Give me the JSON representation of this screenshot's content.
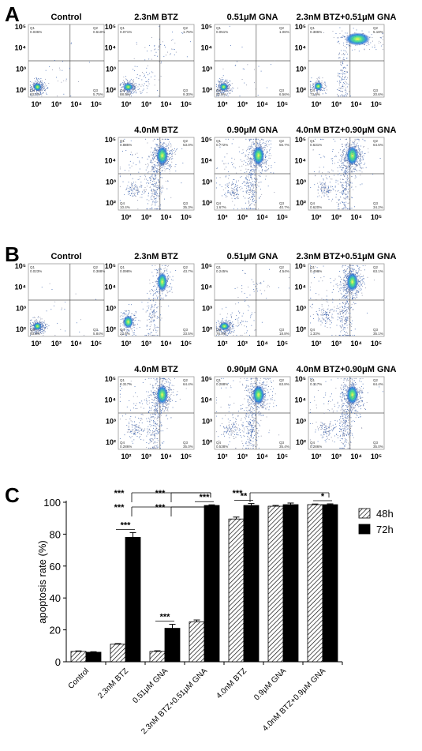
{
  "panels": {
    "A": "A",
    "B": "B",
    "C": "C"
  },
  "flow": {
    "xticks": [
      "10²",
      "10³",
      "10⁴",
      "10⁵"
    ],
    "yticks": [
      "10⁵",
      "10⁴",
      "10³",
      "10²"
    ],
    "quadrant_names": [
      "Q1",
      "Q2",
      "Q4",
      "Q3"
    ],
    "A": [
      {
        "title": "Control",
        "q": [
          "0.036%",
          "0.610%",
          "93.4%",
          "5.75%"
        ],
        "pattern": "control"
      },
      {
        "title": "2.3nM BTZ",
        "q": [
          "0.071%",
          "1.76%",
          "88.9%",
          "9.30%"
        ],
        "pattern": "weak"
      },
      {
        "title": "0.51μM GNA",
        "q": [
          "0.051%",
          "1.06%",
          "92.9%",
          "6.56%"
        ],
        "pattern": "control"
      },
      {
        "title": "2.3nM BTZ+0.51μM GNA",
        "q": [
          "0.386%",
          "5.18%",
          "73.9%",
          "20.6%"
        ],
        "pattern": "mid"
      },
      {
        "title": "4.0nM BTZ",
        "q": [
          "0.885%",
          "53.0%",
          "10.4%",
          "35.3%"
        ],
        "pattern": "strong"
      },
      {
        "title": "0.90μM GNA",
        "q": [
          "0.772%",
          "56.7%",
          "1.67%",
          "40.7%"
        ],
        "pattern": "strong"
      },
      {
        "title": "4.0nM BTZ+0.90μM GNA",
        "q": [
          "0.631%",
          "64.5%",
          "0.620%",
          "34.2%"
        ],
        "pattern": "strong"
      }
    ],
    "B": [
      {
        "title": "Control",
        "q": [
          "0.023%",
          "0.388%",
          "93.8%",
          "5.84%"
        ],
        "pattern": "control"
      },
      {
        "title": "2.3nM BTZ",
        "q": [
          "0.098%",
          "43.7%",
          "22.6%",
          "33.5%"
        ],
        "pattern": "mid2"
      },
      {
        "title": "0.51μM GNA",
        "q": [
          "0.245%",
          "4.54%",
          "76.0%",
          "18.8%"
        ],
        "pattern": "weak"
      },
      {
        "title": "2.3nM BTZ+0.51μM GNA",
        "q": [
          "0.498%",
          "63.1%",
          "1.33%",
          "35.1%"
        ],
        "pattern": "strong"
      },
      {
        "title": "4.0nM BTZ",
        "q": [
          "0.317%",
          "64.4%",
          "0.286%",
          "35.0%"
        ],
        "pattern": "strong"
      },
      {
        "title": "0.90μM GNA",
        "q": [
          "0.288%",
          "63.8%",
          "0.538%",
          "35.4%"
        ],
        "pattern": "strong"
      },
      {
        "title": "4.0nM BTZ+0.90μM GNA",
        "q": [
          "0.317%",
          "64.4%",
          "0.286%",
          "35.0%"
        ],
        "pattern": "strong"
      }
    ]
  },
  "chart_data": {
    "type": "bar",
    "ylabel": "apoptosis rate (%)",
    "ylim": [
      0,
      100
    ],
    "yticks": [
      "0",
      "20",
      "40",
      "60",
      "80",
      "100"
    ],
    "categories": [
      "Control",
      "2.3nM BTZ",
      "0.51μM GNA",
      "2.3nM BTZ+0.51μM GNA",
      "4.0nM BTZ",
      "0.9μM GNA",
      "4.0nM BTZ+0.9μM GNA"
    ],
    "series": [
      {
        "name": "48h",
        "values": [
          6.5,
          11,
          6.5,
          25,
          89.5,
          97.5,
          98.5
        ],
        "errors": [
          0.3,
          0.4,
          0.4,
          1.2,
          1.2,
          0.5,
          0.4
        ],
        "fill": "hatched"
      },
      {
        "name": "72h",
        "values": [
          6,
          78,
          21,
          98,
          98,
          98.5,
          98.5
        ],
        "errors": [
          0.3,
          3,
          2.5,
          0.4,
          1.2,
          1.0,
          0.5
        ],
        "fill": "#000000"
      }
    ],
    "significance": [
      {
        "label": "***",
        "cat": 1,
        "kind": "pair"
      },
      {
        "label": "***",
        "cat": 2,
        "kind": "pair"
      },
      {
        "label": "***",
        "cat": 3,
        "kind": "pair"
      },
      {
        "label": "**",
        "cat": 4,
        "kind": "pair"
      },
      {
        "label": "*",
        "cat": 6,
        "kind": "pair"
      },
      {
        "label": "***",
        "from": 1,
        "to": 3,
        "level": 1
      },
      {
        "label": "***",
        "from": 2,
        "to": 3,
        "level": 1
      },
      {
        "label": "***",
        "from": 1,
        "to": 3,
        "level": 2
      },
      {
        "label": "***",
        "from": 2,
        "to": 3,
        "level": 2
      },
      {
        "label": "***",
        "from": 4,
        "to": 6,
        "level": 2
      }
    ],
    "legend": {
      "position": "top-right",
      "entries": [
        "48h",
        "72h"
      ]
    }
  }
}
